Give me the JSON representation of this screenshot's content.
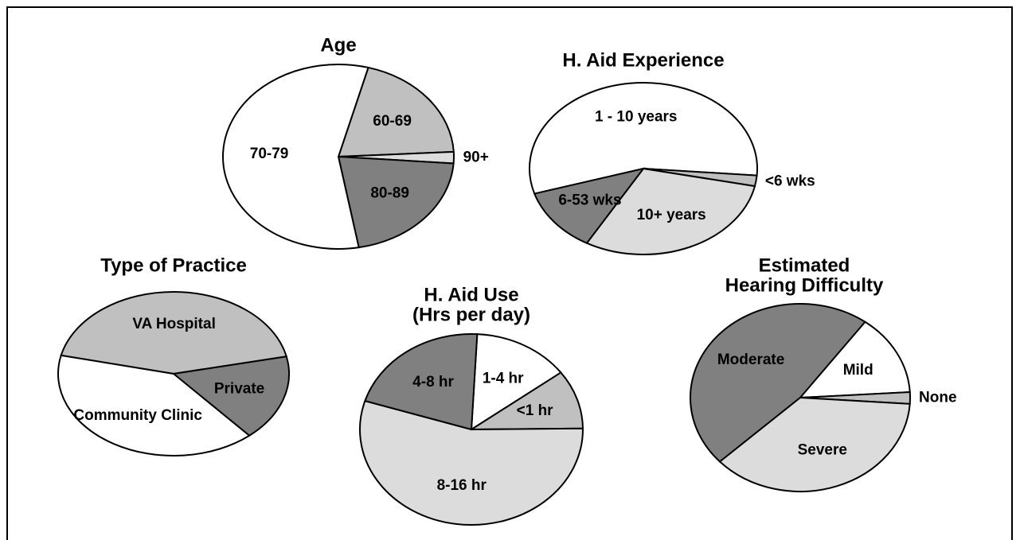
{
  "chart_data": [
    {
      "type": "pie",
      "title": [
        "Age"
      ],
      "categories": [
        "60-69",
        "90+",
        "80-89",
        "70-79"
      ],
      "values": [
        20,
        2,
        21,
        57
      ],
      "colors": [
        "#c0c0c0",
        "#dcdcdc",
        "#808080",
        "#ffffff"
      ]
    },
    {
      "type": "pie",
      "title": [
        "H. Aid Experience"
      ],
      "categories": [
        "1 - 10 years",
        "<6 wks",
        "10+ years",
        "6-53 wks"
      ],
      "values": [
        56,
        2,
        30,
        12
      ],
      "colors": [
        "#ffffff",
        "#c0c0c0",
        "#dcdcdc",
        "#808080"
      ]
    },
    {
      "type": "pie",
      "title": [
        "Type of Practice"
      ],
      "categories": [
        "VA Hospital",
        "Private",
        "Community Clinic"
      ],
      "values": [
        43,
        17,
        40
      ],
      "colors": [
        "#c0c0c0",
        "#808080",
        "#ffffff"
      ]
    },
    {
      "type": "pie",
      "title": [
        "H. Aid Use",
        "(Hrs per day)"
      ],
      "categories": [
        "1-4 hr",
        "<1 hr",
        "8-16 hr",
        "4-8 hr"
      ],
      "values": [
        14,
        10,
        55,
        21
      ],
      "colors": [
        "#ffffff",
        "#c0c0c0",
        "#dcdcdc",
        "#808080"
      ]
    },
    {
      "type": "pie",
      "title": [
        "Estimated",
        "Hearing Difficulty"
      ],
      "categories": [
        "Moderate",
        "Mild",
        "None",
        "Severe"
      ],
      "values": [
        47,
        14,
        2,
        37
      ],
      "colors": [
        "#808080",
        "#ffffff",
        "#c0c0c0",
        "#dcdcdc"
      ]
    }
  ]
}
